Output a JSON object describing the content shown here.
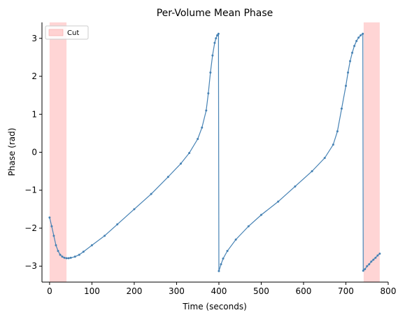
{
  "chart_data": {
    "type": "line",
    "title": "Per-Volume Mean Phase",
    "xlabel": "Time (seconds)",
    "ylabel": "Phase (rad)",
    "xlim": [
      -18,
      800
    ],
    "ylim": [
      -3.42,
      3.42
    ],
    "xticks": [
      0,
      100,
      200,
      300,
      400,
      500,
      600,
      700,
      800
    ],
    "xtick_labels": [
      "0",
      "100",
      "200",
      "300",
      "400",
      "500",
      "600",
      "700",
      "800"
    ],
    "yticks": [
      -3,
      -2,
      -1,
      0,
      1,
      2,
      3
    ],
    "ytick_labels": [
      "−3",
      "−2",
      "−1",
      "0",
      "1",
      "2",
      "3"
    ],
    "grid": false,
    "legend": {
      "position": "top-left",
      "entries": [
        "Cut"
      ]
    },
    "shaded_regions": [
      {
        "label": "Cut",
        "x_start": 0,
        "x_end": 40,
        "color": "#ffb3b3"
      },
      {
        "label": "Cut",
        "x_start": 742,
        "x_end": 780,
        "color": "#ffb3b3"
      }
    ],
    "series": [
      {
        "color": "#4682b4",
        "marker": "dot",
        "x": [
          0,
          5,
          10,
          15,
          20,
          25,
          30,
          35,
          40,
          45,
          50,
          60,
          70,
          80,
          100,
          130,
          160,
          200,
          240,
          280,
          310,
          330,
          350,
          360,
          370,
          375,
          380,
          385,
          390,
          393,
          396,
          399,
          400,
          405,
          410,
          420,
          440,
          470,
          500,
          540,
          580,
          620,
          650,
          670,
          680,
          690,
          700,
          705,
          710,
          715,
          720,
          725,
          730,
          735,
          740,
          741,
          745,
          750,
          755,
          760,
          765,
          770,
          775,
          780
        ],
        "y": [
          -1.72,
          -1.95,
          -2.2,
          -2.45,
          -2.6,
          -2.7,
          -2.75,
          -2.78,
          -2.79,
          -2.79,
          -2.78,
          -2.75,
          -2.7,
          -2.62,
          -2.45,
          -2.2,
          -1.9,
          -1.5,
          -1.1,
          -0.65,
          -0.3,
          -0.02,
          0.35,
          0.65,
          1.1,
          1.55,
          2.1,
          2.55,
          2.88,
          3.0,
          3.08,
          3.12,
          -3.13,
          -2.95,
          -2.8,
          -2.6,
          -2.3,
          -1.95,
          -1.65,
          -1.3,
          -0.9,
          -0.5,
          -0.15,
          0.2,
          0.55,
          1.15,
          1.75,
          2.1,
          2.4,
          2.62,
          2.8,
          2.93,
          3.02,
          3.08,
          3.12,
          -3.12,
          -3.08,
          -3.0,
          -2.95,
          -2.88,
          -2.83,
          -2.78,
          -2.72,
          -2.67
        ]
      }
    ]
  }
}
